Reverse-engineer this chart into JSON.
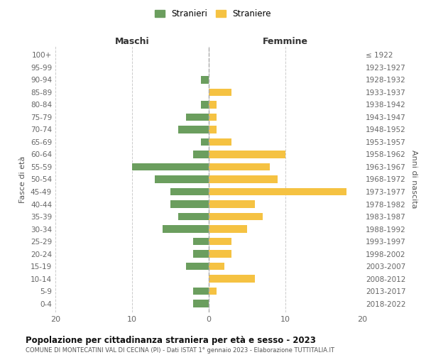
{
  "age_groups": [
    "100+",
    "95-99",
    "90-94",
    "85-89",
    "80-84",
    "75-79",
    "70-74",
    "65-69",
    "60-64",
    "55-59",
    "50-54",
    "45-49",
    "40-44",
    "35-39",
    "30-34",
    "25-29",
    "20-24",
    "15-19",
    "10-14",
    "5-9",
    "0-4"
  ],
  "birth_years": [
    "≤ 1922",
    "1923-1927",
    "1928-1932",
    "1933-1937",
    "1938-1942",
    "1943-1947",
    "1948-1952",
    "1953-1957",
    "1958-1962",
    "1963-1967",
    "1968-1972",
    "1973-1977",
    "1978-1982",
    "1983-1987",
    "1988-1992",
    "1993-1997",
    "1998-2002",
    "2003-2007",
    "2008-2012",
    "2013-2017",
    "2018-2022"
  ],
  "maschi": [
    0,
    0,
    1,
    0,
    1,
    3,
    4,
    1,
    2,
    10,
    7,
    5,
    5,
    4,
    6,
    2,
    2,
    3,
    0,
    2,
    2
  ],
  "femmine": [
    0,
    0,
    0,
    3,
    1,
    1,
    1,
    3,
    10,
    8,
    9,
    18,
    6,
    7,
    5,
    3,
    3,
    2,
    6,
    1,
    0
  ],
  "color_maschi": "#6b9e5e",
  "color_femmine": "#f5c242",
  "title": "Popolazione per cittadinanza straniera per età e sesso - 2023",
  "subtitle": "COMUNE DI MONTECATINI VAL DI CECINA (PI) - Dati ISTAT 1° gennaio 2023 - Elaborazione TUTTITALIA.IT",
  "xlabel_left": "Maschi",
  "xlabel_right": "Femmine",
  "ylabel_left": "Fasce di età",
  "ylabel_right": "Anni di nascita",
  "xlim": 20,
  "legend_stranieri": "Stranieri",
  "legend_straniere": "Straniere",
  "background_color": "#ffffff",
  "grid_color": "#cccccc"
}
